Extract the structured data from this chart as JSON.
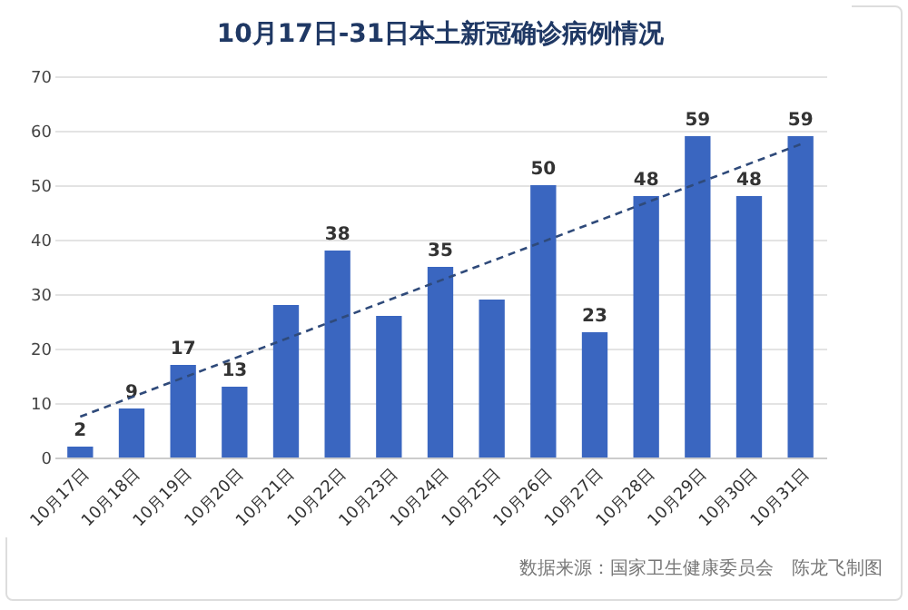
{
  "chart_data": {
    "type": "bar",
    "title": "10月17日-31日本土新冠确诊病例情况",
    "categories": [
      "10月17日",
      "10月18日",
      "10月19日",
      "10月20日",
      "10月21日",
      "10月22日",
      "10月23日",
      "10月24日",
      "10月25日",
      "10月26日",
      "10月27日",
      "10月28日",
      "10月29日",
      "10月30日",
      "10月31日"
    ],
    "series": [
      {
        "color": "#3a66c0",
        "values": [
          2,
          9,
          17,
          13,
          28,
          38,
          26,
          35,
          29,
          50,
          23,
          48,
          59,
          48,
          59
        ],
        "value_labels": [
          "2",
          "9",
          "17",
          "13",
          null,
          "38",
          null,
          "35",
          null,
          "50",
          "23",
          "48",
          "59",
          "48",
          "59"
        ]
      },
      {
        "type": "line",
        "color": "#2f4a7a",
        "line_style": "dashed",
        "x": [
          "10月17日",
          "10月31日"
        ],
        "values": [
          7.5,
          57.5
        ]
      }
    ],
    "ylim": [
      0,
      70
    ],
    "yticks": [
      0,
      10,
      20,
      30,
      40,
      50,
      60,
      70
    ],
    "grid": "y",
    "annotations": [
      "数据来源：国家卫生健康委员会",
      "陈龙飞制图"
    ]
  }
}
